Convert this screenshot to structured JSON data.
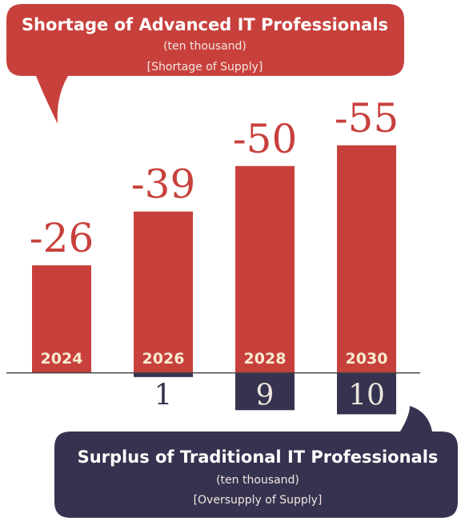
{
  "chart_data": {
    "type": "bar",
    "categories": [
      "2024",
      "2026",
      "2028",
      "2030"
    ],
    "series": [
      {
        "name": "Shortage of Advanced IT Professionals",
        "unit": "(ten thousand)",
        "note": "[Shortage of Supply]",
        "color": "#c8403c",
        "values": [
          -26,
          -39,
          -50,
          -55
        ]
      },
      {
        "name": "Surplus of Traditional IT Professionals",
        "unit": "(ten thousand)",
        "note": "[Oversupply of Supply]",
        "color": "#35334f",
        "values": [
          null,
          1,
          9,
          10
        ]
      }
    ],
    "ylim": [
      -60,
      13
    ]
  }
}
